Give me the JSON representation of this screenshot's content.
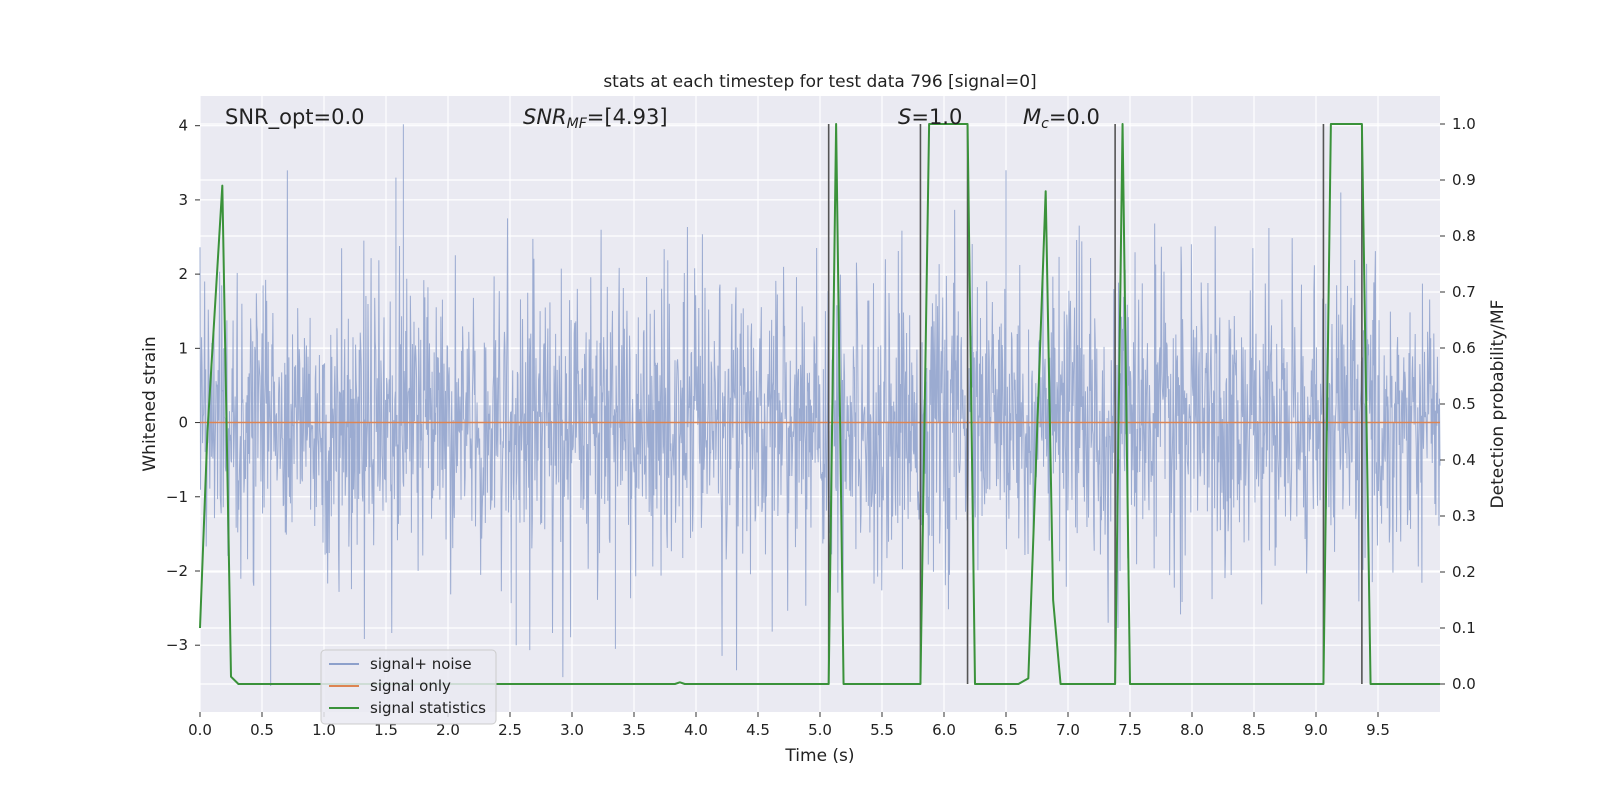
{
  "chart_data": {
    "type": "line",
    "title": "stats at each timestep for test data 796 [signal=0]",
    "xlabel": "Time (s)",
    "ylabel_left": "Whitened strain",
    "ylabel_right": "Detection probability/MF",
    "xlim": [
      0.0,
      10.0
    ],
    "ylim_left": [
      -3.9,
      4.4
    ],
    "ylim_right": [
      -0.05,
      1.05
    ],
    "xticks": [
      0.0,
      0.5,
      1.0,
      1.5,
      2.0,
      2.5,
      3.0,
      3.5,
      4.0,
      4.5,
      5.0,
      5.5,
      6.0,
      6.5,
      7.0,
      7.5,
      8.0,
      8.5,
      9.0,
      9.5
    ],
    "xtick_labels": [
      "0.0",
      "0.5",
      "1.0",
      "1.5",
      "2.0",
      "2.5",
      "3.0",
      "3.5",
      "4.0",
      "4.5",
      "5.0",
      "5.5",
      "6.0",
      "6.5",
      "7.0",
      "7.5",
      "8.0",
      "8.5",
      "9.0",
      "9.5"
    ],
    "yticks_left": [
      -3,
      -2,
      -1,
      0,
      1,
      2,
      3,
      4
    ],
    "ytick_labels_left": [
      "−3",
      "−2",
      "−1",
      "0",
      "1",
      "2",
      "3",
      "4"
    ],
    "yticks_right": [
      0.0,
      0.1,
      0.2,
      0.3,
      0.4,
      0.5,
      0.6,
      0.7,
      0.8,
      0.9,
      1.0
    ],
    "ytick_labels_right": [
      "0.0",
      "0.1",
      "0.2",
      "0.3",
      "0.4",
      "0.5",
      "0.6",
      "0.7",
      "0.8",
      "0.9",
      "1.0"
    ],
    "grid": true,
    "legend_position": "lower-left",
    "series": [
      {
        "name": "signal+ noise",
        "axis": "left",
        "color": "#8da0cb",
        "description": "whitened noise, roughly symmetric around 0 with spikes up to ~4.0 and down to ~-3.6"
      },
      {
        "name": "signal only",
        "axis": "left",
        "color": "#dd8452",
        "x": [
          0.0,
          10.0
        ],
        "y": [
          0.0,
          0.0
        ]
      },
      {
        "name": "signal statistics",
        "axis": "right",
        "color": "#3a923a",
        "x": [
          0.0,
          0.06,
          0.18,
          0.25,
          0.31,
          3.83,
          3.87,
          3.91,
          5.07,
          5.13,
          5.19,
          5.81,
          5.88,
          6.19,
          6.25,
          6.6,
          6.68,
          6.82,
          6.88,
          6.94,
          7.38,
          7.44,
          7.5,
          9.06,
          9.12,
          9.37,
          9.44,
          10.0
        ],
        "y": [
          0.1,
          0.45,
          0.89,
          0.013,
          0.0,
          0.0,
          0.003,
          0.0,
          0.0,
          1.0,
          0.0,
          0.0,
          1.0,
          1.0,
          0.0,
          0.0,
          0.01,
          0.88,
          0.15,
          0.0,
          0.0,
          1.0,
          0.0,
          0.0,
          1.0,
          1.0,
          0.0,
          0.0
        ]
      }
    ],
    "vertical_markers": [
      5.07,
      5.81,
      6.19,
      7.38,
      9.06,
      9.37
    ],
    "vertical_marker_range_right": [
      0.0,
      1.0
    ],
    "annotations": [
      {
        "name": "snr-opt",
        "text": "SNR_opt=0.0"
      },
      {
        "name": "snr-mf",
        "base": "SNR",
        "sub": "MF",
        "rest": "=[4.93]"
      },
      {
        "name": "s-value",
        "base": "S",
        "rest": "=1.0"
      },
      {
        "name": "mc-value",
        "base": "M",
        "sub": "c",
        "rest": "=0.0"
      }
    ],
    "colors": {
      "background": "#eaeaf2",
      "grid": "#ffffff",
      "noise": "#8da0cb",
      "signal_only": "#dd8452",
      "statistics": "#3a923a",
      "markers": "#555555"
    }
  }
}
